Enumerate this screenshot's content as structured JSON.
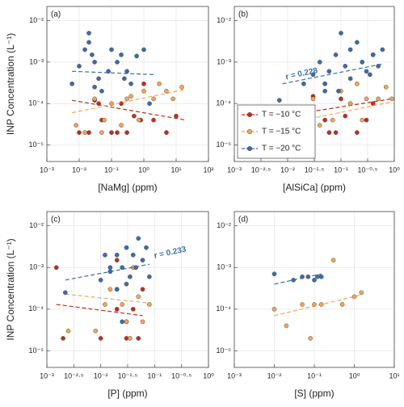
{
  "chart_data": [
    {
      "type": "scatter",
      "panel_label": "(a)",
      "xlabel": "[NaMg] (ppm)",
      "ylabel": "INP Concentration (L⁻¹)",
      "grid": true,
      "xlim": [
        0.001,
        100
      ],
      "xticks": [
        {
          "value": 0.001,
          "label": "10⁻³"
        },
        {
          "value": 0.01,
          "label": "10⁻²"
        },
        {
          "value": 0.1,
          "label": "10⁻¹"
        },
        {
          "value": 1,
          "label": "10⁰"
        },
        {
          "value": 10,
          "label": "10¹"
        },
        {
          "value": 100,
          "label": "10²"
        }
      ],
      "ylim": [
        4e-06,
        0.022
      ],
      "yticks": [
        {
          "value": 1e-05,
          "label": "10⁻⁵"
        },
        {
          "value": 0.0001,
          "label": "10⁻⁴"
        },
        {
          "value": 0.001,
          "label": "10⁻³"
        },
        {
          "value": 0.01,
          "label": "10⁻²"
        }
      ],
      "series": [
        {
          "color": "#c62d1f",
          "x": [
            0.01,
            0.02,
            0.03,
            0.05,
            0.1,
            0.2,
            0.3,
            0.5,
            1,
            2,
            5,
            10,
            0.04,
            0.15,
            0.8
          ],
          "values": [
            2e-05,
            2e-05,
            0.00012,
            4e-05,
            2e-05,
            0.0001,
            2e-05,
            5e-05,
            0.0003,
            4e-05,
            2e-05,
            5e-05,
            0.0001,
            2e-05,
            4e-05
          ],
          "fit_x": [
            0.006,
            20
          ],
          "fit_y": [
            0.00012,
            4e-05
          ]
        },
        {
          "color": "#f2a55a",
          "x": [
            0.008,
            0.015,
            0.03,
            0.06,
            0.1,
            0.2,
            0.4,
            0.7,
            1,
            2,
            3,
            5,
            8,
            15,
            0.05,
            0.3
          ],
          "values": [
            3e-05,
            2e-05,
            0.00013,
            4e-05,
            0.0001,
            3e-05,
            0.00015,
            4e-05,
            0.0002,
            0.00013,
            0.0003,
            0.0002,
            0.00013,
            0.00025,
            2e-05,
            0.00013
          ],
          "fit_x": [
            0.006,
            20
          ],
          "fit_y": [
            6e-05,
            0.00022
          ]
        },
        {
          "color": "#3b6ea8",
          "x": [
            0.006,
            0.01,
            0.015,
            0.02,
            0.025,
            0.03,
            0.04,
            0.05,
            0.08,
            0.1,
            0.15,
            0.2,
            0.3,
            0.4,
            0.6,
            1,
            1.5,
            0.02,
            0.03,
            0.25
          ],
          "values": [
            0.0003,
            0.0008,
            0.002,
            0.005,
            0.0015,
            0.001,
            0.0004,
            0.0002,
            0.0006,
            0.002,
            0.001,
            0.0015,
            0.0006,
            0.0003,
            0.0014,
            0.002,
            0.0001,
            0.003,
            0.00025,
            0.0004
          ],
          "fit_x": [
            0.006,
            2
          ],
          "fit_y": [
            0.0006,
            0.0005
          ]
        }
      ]
    },
    {
      "type": "scatter",
      "panel_label": "(b)",
      "xlabel": "[AlSiCa] (ppm)",
      "grid": true,
      "annotation": "r = 0.228",
      "xlim": [
        0.001,
        1
      ],
      "xticks": [
        {
          "value": 0.001,
          "label": "10⁻³"
        },
        {
          "value": 0.0031623,
          "label": "10⁻²·⁵"
        },
        {
          "value": 0.01,
          "label": "10⁻²"
        },
        {
          "value": 0.031623,
          "label": "10⁻¹·⁵"
        },
        {
          "value": 0.1,
          "label": "10⁻¹"
        },
        {
          "value": 0.31623,
          "label": "10⁻⁰·⁵"
        },
        {
          "value": 1,
          "label": "10⁰"
        }
      ],
      "ylim": [
        4e-06,
        0.022
      ],
      "yticks": [
        {
          "value": 1e-05,
          "label": "10⁻⁵"
        },
        {
          "value": 0.0001,
          "label": "10⁻⁴"
        },
        {
          "value": 0.001,
          "label": "10⁻³"
        },
        {
          "value": 0.01,
          "label": "10⁻²"
        }
      ],
      "series": [
        {
          "name": "T = −10 °C",
          "color": "#c62d1f",
          "x": [
            0.03,
            0.05,
            0.08,
            0.1,
            0.12,
            0.15,
            0.2,
            0.3,
            0.4,
            0.03,
            0.06
          ],
          "values": [
            2e-05,
            4e-05,
            2e-05,
            0.00013,
            5e-05,
            0.0001,
            2e-05,
            4e-05,
            0.0001,
            0.00015,
            2e-05
          ],
          "fit_x": [
            0.02,
            0.9
          ],
          "fit_y": [
            6e-05,
            0.00013
          ]
        },
        {
          "name": "T = −15 °C",
          "color": "#f2a55a",
          "x": [
            0.02,
            0.03,
            0.05,
            0.07,
            0.1,
            0.15,
            0.2,
            0.3,
            0.4,
            0.5,
            0.7,
            0.9,
            0.04,
            0.25
          ],
          "values": [
            3e-05,
            0.00013,
            0.0003,
            4e-05,
            0.0002,
            0.0001,
            0.0003,
            0.00013,
            0.0015,
            0.00013,
            0.00025,
            0.00013,
            3e-05,
            4e-05
          ],
          "fit_x": [
            0.02,
            0.9
          ],
          "fit_y": [
            4e-05,
            0.00011
          ]
        },
        {
          "name": "T = −20 °C",
          "color": "#3b6ea8",
          "x": [
            0.007,
            0.02,
            0.03,
            0.04,
            0.05,
            0.06,
            0.08,
            0.1,
            0.12,
            0.15,
            0.2,
            0.25,
            0.3,
            0.4,
            0.5,
            0.6,
            0.05,
            0.09,
            0.15,
            0.35
          ],
          "values": [
            0.00012,
            0.0003,
            0.0005,
            0.001,
            0.0002,
            0.0006,
            0.0015,
            0.005,
            0.0008,
            0.002,
            0.003,
            0.001,
            0.0006,
            0.0015,
            0.0008,
            0.002,
            0.0003,
            0.0002,
            0.0004,
            0.0005
          ],
          "fit_x": [
            0.008,
            0.6
          ],
          "fit_y": [
            0.0003,
            0.0009
          ]
        }
      ]
    },
    {
      "type": "scatter",
      "panel_label": "(c)",
      "xlabel": "[P] (ppm)",
      "ylabel": "INP Concentration (L⁻¹)",
      "grid": true,
      "annotation": "r = 0.233",
      "xlim": [
        0.001,
        1
      ],
      "xticks": [
        {
          "value": 0.001,
          "label": "10⁻³"
        },
        {
          "value": 0.0031623,
          "label": "10⁻²·⁵"
        },
        {
          "value": 0.01,
          "label": "10⁻²"
        },
        {
          "value": 0.031623,
          "label": "10⁻¹·⁵"
        },
        {
          "value": 0.1,
          "label": "10⁻¹"
        },
        {
          "value": 0.31623,
          "label": "10⁻⁰·⁵"
        },
        {
          "value": 1,
          "label": "10⁰"
        }
      ],
      "ylim": [
        4e-06,
        0.022
      ],
      "yticks": [
        {
          "value": 1e-05,
          "label": "10⁻⁵"
        },
        {
          "value": 0.0001,
          "label": "10⁻⁴"
        },
        {
          "value": 0.001,
          "label": "10⁻³"
        },
        {
          "value": 0.01,
          "label": "10⁻²"
        }
      ],
      "series": [
        {
          "color": "#c62d1f",
          "x": [
            0.0015,
            0.002,
            0.01,
            0.02,
            0.03,
            0.04,
            0.05,
            0.06,
            0.02,
            0.03
          ],
          "values": [
            0.001,
            2e-05,
            2e-05,
            0.0001,
            2e-05,
            0.0001,
            2e-05,
            0.0003,
            0.0015,
            5e-05
          ],
          "fit_x": [
            0.0015,
            0.06
          ],
          "fit_y": [
            0.00013,
            7e-05
          ]
        },
        {
          "color": "#f2a55a",
          "x": [
            0.0025,
            0.008,
            0.012,
            0.02,
            0.025,
            0.03,
            0.04,
            0.05,
            0.06,
            0.08,
            0.035,
            0.015
          ],
          "values": [
            3e-05,
            3e-05,
            0.00013,
            0.0003,
            0.00013,
            5e-05,
            0.001,
            0.0002,
            5e-05,
            0.00013,
            2e-05,
            0.0003
          ],
          "fit_x": [
            0.0022,
            0.08
          ],
          "fit_y": [
            0.00023,
            0.00014
          ]
        },
        {
          "color": "#3b6ea8",
          "x": [
            0.0022,
            0.01,
            0.012,
            0.015,
            0.02,
            0.025,
            0.03,
            0.035,
            0.04,
            0.05,
            0.06,
            0.07,
            0.08,
            0.02,
            0.03,
            0.045,
            0.025,
            0.015
          ],
          "values": [
            0.00025,
            0.0005,
            0.002,
            0.0008,
            0.002,
            0.001,
            0.003,
            0.0006,
            0.002,
            0.005,
            0.0015,
            0.003,
            0.0006,
            0.0003,
            0.0004,
            0.001,
            5e-05,
            0.001
          ],
          "fit_x": [
            0.0022,
            0.08
          ],
          "fit_y": [
            0.0005,
            0.0012
          ]
        }
      ]
    },
    {
      "type": "scatter",
      "panel_label": "(d)",
      "xlabel": "[S] (ppm)",
      "grid": true,
      "xlim": [
        0.001,
        10
      ],
      "xticks": [
        {
          "value": 0.001,
          "label": "10⁻³"
        },
        {
          "value": 0.01,
          "label": "10⁻²"
        },
        {
          "value": 0.1,
          "label": "10⁻¹"
        },
        {
          "value": 1,
          "label": "10⁰"
        },
        {
          "value": 10,
          "label": "10¹"
        }
      ],
      "ylim": [
        4e-06,
        0.022
      ],
      "yticks": [
        {
          "value": 1e-05,
          "label": "10⁻⁵"
        },
        {
          "value": 0.0001,
          "label": "10⁻⁴"
        },
        {
          "value": 0.001,
          "label": "10⁻³"
        },
        {
          "value": 0.01,
          "label": "10⁻²"
        }
      ],
      "series": [
        {
          "color": "#f2a55a",
          "x": [
            0.01,
            0.02,
            0.05,
            0.08,
            0.1,
            0.15,
            0.3,
            0.5,
            1,
            1.5
          ],
          "values": [
            0.0001,
            4e-05,
            0.00013,
            2e-05,
            0.00013,
            0.00013,
            0.0015,
            0.00013,
            0.0002,
            0.00025
          ],
          "fit_x": [
            0.01,
            1.5
          ],
          "fit_y": [
            7e-05,
            0.00022
          ]
        },
        {
          "color": "#3b6ea8",
          "x": [
            0.01,
            0.03,
            0.05,
            0.07,
            0.1,
            0.12,
            0.15
          ],
          "values": [
            0.0007,
            0.0005,
            0.0006,
            0.0006,
            0.0005,
            0.0006,
            0.0006
          ],
          "fit_x": [
            0.01,
            0.15
          ],
          "fit_y": [
            0.0004,
            0.0007
          ]
        }
      ]
    }
  ]
}
